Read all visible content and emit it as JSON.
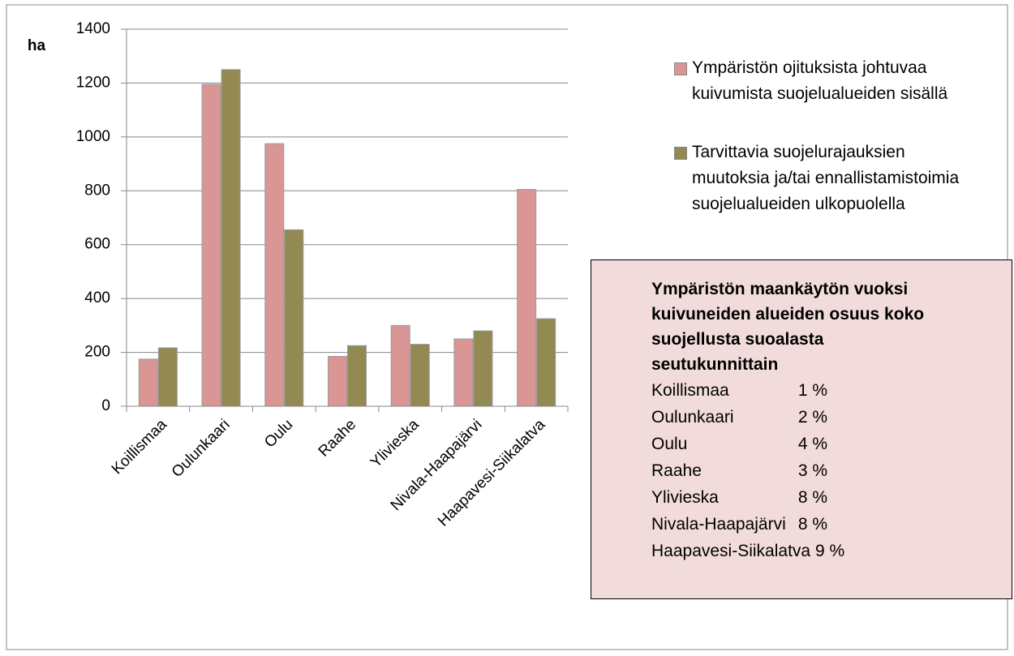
{
  "chart_data": {
    "type": "bar",
    "y_label": "ha",
    "categories": [
      "Koillismaa",
      "Oulunkaari",
      "Oulu",
      "Raahe",
      "Ylivieska",
      "Nivala-Haapajärvi",
      "Haapavesi-Siikalatva"
    ],
    "series": [
      {
        "name": "Ympäristön ojituksista johtuvaa kuivumista suojelualueiden sisällä",
        "color": "#d99694",
        "values": [
          175,
          1195,
          975,
          185,
          300,
          250,
          805
        ]
      },
      {
        "name": "Tarvittavia suojelurajauksien muutoksia ja/tai ennallistamistoimia suojelualueiden ulkopuolella",
        "color": "#938953",
        "values": [
          217,
          1250,
          655,
          225,
          230,
          280,
          325
        ]
      }
    ],
    "ylim": [
      0,
      1400
    ],
    "yticks": [
      0,
      200,
      400,
      600,
      800,
      1000,
      1200,
      1400
    ],
    "grid": true,
    "legend": "right",
    "annotation": {
      "title": "Ympäristön maankäytön vuoksi kuivuneiden alueiden osuus koko suojellusta suoalasta seutukunnittain",
      "rows": [
        [
          "Koillismaa",
          "1 %"
        ],
        [
          "Oulunkaari",
          "2 %"
        ],
        [
          "Oulu",
          "4 %"
        ],
        [
          "Raahe",
          "3 %"
        ],
        [
          "Ylivieska",
          "8 %"
        ],
        [
          "Nivala-Haapajärvi",
          "8 %"
        ],
        [
          "Haapavesi-Siikalatva",
          "9 %"
        ]
      ]
    }
  }
}
